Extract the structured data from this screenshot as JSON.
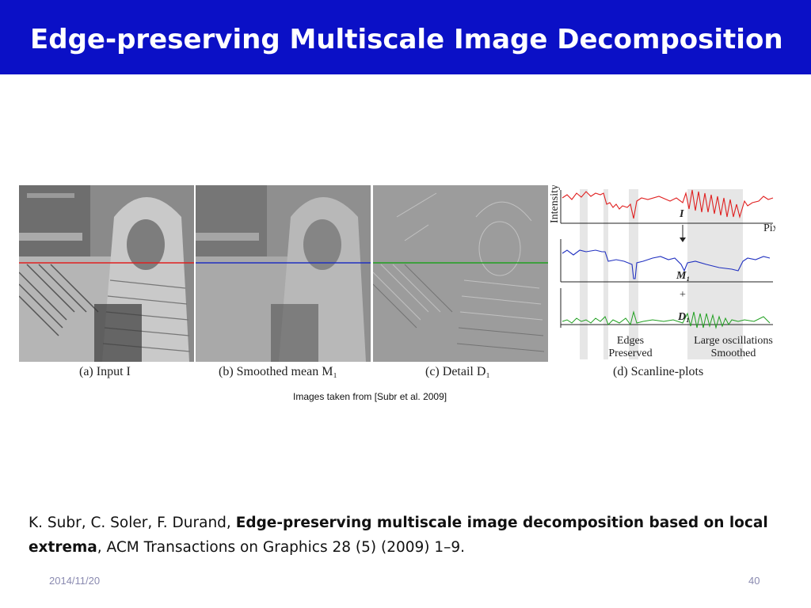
{
  "slide": {
    "title": "Edge-preserving Multiscale Image Decomposition",
    "credit": "Images taken from [Subr et al. 2009]",
    "citation": {
      "authors": "K. Subr, C. Soler, F. Durand, ",
      "paper_title": "Edge-preserving multiscale image decomposition based on local extrema",
      "venue": ", ACM Transactions on Graphics 28 (5) (2009) 1–9."
    },
    "date": "2014/11/20",
    "page_number": "40"
  },
  "figure": {
    "captions": [
      "(a) Input I",
      "(b) Smoothed mean M₁",
      "(c) Detail D₁",
      "(d) Scanline-plots"
    ],
    "plot_labels": {
      "intensity": "Intensity",
      "pixels": "Pixels",
      "input": "I",
      "mean": "M₁",
      "plus": "+",
      "detail": "D₁",
      "edges": "Edges",
      "preserved": "Preserved",
      "large_osc": "Large oscillations",
      "smoothed": "Smoothed"
    },
    "scanline_colors": {
      "input": "#e02020",
      "mean": "#2030c0",
      "detail": "#20a020"
    }
  }
}
